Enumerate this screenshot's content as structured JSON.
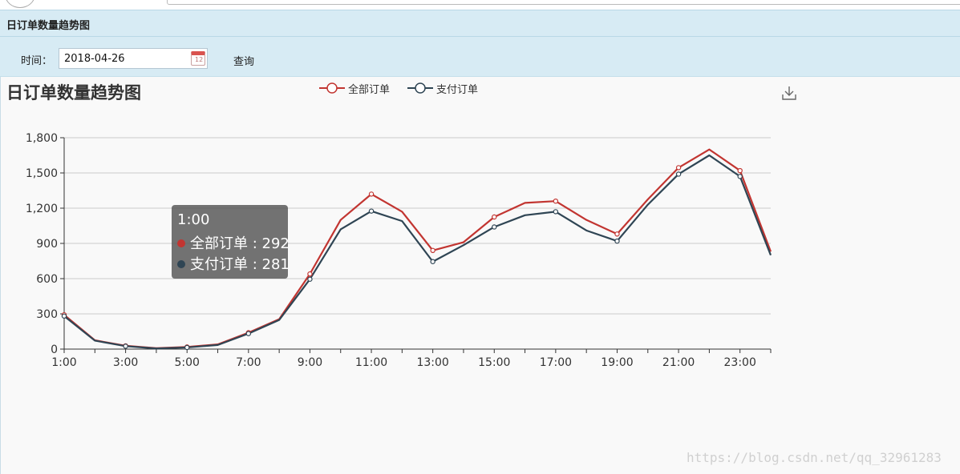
{
  "panel": {
    "title": "日订单数量趋势图"
  },
  "filter": {
    "time_label": "时间：",
    "date_value": "2018-04-26",
    "query_label": "查询",
    "calendar_day": "12"
  },
  "tooltip": {
    "header": "1:00",
    "rows": [
      {
        "label": "全部订单 : 292",
        "color": "#c23531"
      },
      {
        "label": "支付订单 : 281",
        "color": "#2f4554"
      }
    ]
  },
  "watermark": "https://blog.csdn.net/qq_32961283",
  "colors": {
    "all_orders": "#c23531",
    "paid_orders": "#2f4554",
    "header_bg": "#d7ebf4"
  },
  "chart_data": {
    "type": "line",
    "title": "日订单数量趋势图",
    "x": [
      "1:00",
      "2:00",
      "3:00",
      "4:00",
      "5:00",
      "6:00",
      "7:00",
      "8:00",
      "9:00",
      "10:00",
      "11:00",
      "12:00",
      "13:00",
      "14:00",
      "15:00",
      "16:00",
      "17:00",
      "18:00",
      "19:00",
      "20:00",
      "21:00",
      "22:00",
      "23:00",
      "24:00"
    ],
    "x_ticks": [
      "1:00",
      "3:00",
      "5:00",
      "7:00",
      "9:00",
      "11:00",
      "13:00",
      "15:00",
      "17:00",
      "19:00",
      "21:00",
      "23:00"
    ],
    "y_ticks": [
      {
        "value": 0,
        "label": "0"
      },
      {
        "value": 300,
        "label": "300"
      },
      {
        "value": 600,
        "label": "600"
      },
      {
        "value": 900,
        "label": "900"
      },
      {
        "value": 1200,
        "label": "1,200"
      },
      {
        "value": 1500,
        "label": "1,500"
      },
      {
        "value": 1800,
        "label": "1,800"
      }
    ],
    "ylim": [
      0,
      1800
    ],
    "grid": true,
    "legend_position": "top-center",
    "series": [
      {
        "name": "全部订单",
        "color": "#c23531",
        "values": [
          292,
          75,
          28,
          8,
          18,
          40,
          140,
          255,
          640,
          1100,
          1320,
          1170,
          840,
          910,
          1125,
          1245,
          1260,
          1100,
          980,
          1275,
          1545,
          1700,
          1520,
          830
        ]
      },
      {
        "name": "支付订单",
        "color": "#2f4554",
        "values": [
          281,
          72,
          25,
          5,
          14,
          35,
          132,
          248,
          595,
          1020,
          1175,
          1090,
          745,
          885,
          1040,
          1140,
          1170,
          1010,
          920,
          1230,
          1490,
          1650,
          1470,
          800
        ]
      }
    ]
  }
}
